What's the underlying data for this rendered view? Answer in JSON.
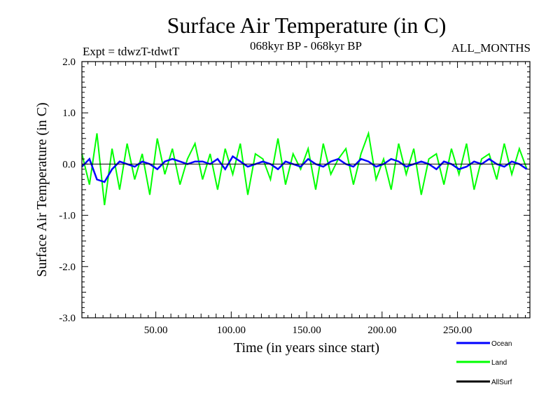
{
  "chart_data": {
    "type": "line",
    "title": "Surface Air Temperature (in C)",
    "subtitle_left": "Expt = tdwzT-tdwtT",
    "subtitle_center": "068kyr BP - 068kyr BP",
    "subtitle_right": "ALL_MONTHS",
    "xlabel": "Time (in years since start)",
    "ylabel": "Surface Air Temperature (in C)",
    "xlim": [
      1,
      298
    ],
    "ylim": [
      -3.0,
      2.0
    ],
    "x_ticks": [
      50,
      100,
      150,
      200,
      250
    ],
    "x_tick_labels": [
      "50.00",
      "100.00",
      "150.00",
      "200.00",
      "250.00"
    ],
    "y_ticks": [
      2.0,
      1.0,
      0.0,
      -1.0,
      -2.0,
      -3.0
    ],
    "y_tick_labels": [
      "2.0",
      "1.0",
      "0.0",
      "-1.0",
      "-2.0",
      "-3.0"
    ],
    "zero_line": 0.0,
    "grid": false,
    "legend_position": "bottom-right",
    "series": [
      {
        "name": "Ocean",
        "color": "#0000ff",
        "x": [
          1,
          6,
          11,
          16,
          21,
          26,
          31,
          36,
          41,
          46,
          51,
          56,
          61,
          66,
          71,
          76,
          81,
          86,
          91,
          96,
          101,
          106,
          111,
          116,
          121,
          126,
          131,
          136,
          141,
          146,
          151,
          156,
          161,
          166,
          171,
          176,
          181,
          186,
          191,
          196,
          201,
          206,
          211,
          216,
          221,
          226,
          231,
          236,
          241,
          246,
          251,
          256,
          261,
          266,
          271,
          276,
          281,
          286,
          291,
          296
        ],
        "values": [
          -0.05,
          0.1,
          -0.3,
          -0.35,
          -0.1,
          0.05,
          0.0,
          -0.05,
          0.05,
          0.0,
          -0.1,
          0.05,
          0.1,
          0.05,
          0.0,
          0.05,
          0.05,
          0.0,
          0.1,
          -0.1,
          0.15,
          0.05,
          -0.05,
          0.0,
          0.05,
          0.0,
          -0.1,
          0.05,
          0.0,
          -0.05,
          0.1,
          0.0,
          -0.05,
          0.05,
          0.1,
          0.0,
          -0.05,
          0.1,
          0.05,
          -0.05,
          0.0,
          0.1,
          0.05,
          -0.05,
          0.0,
          0.05,
          0.0,
          -0.1,
          0.05,
          0.0,
          -0.1,
          -0.05,
          0.05,
          0.0,
          0.1,
          0.0,
          -0.05,
          0.05,
          0.0,
          -0.1
        ]
      },
      {
        "name": "Land",
        "color": "#00ff00",
        "x": [
          1,
          6,
          11,
          16,
          21,
          26,
          31,
          36,
          41,
          46,
          51,
          56,
          61,
          66,
          71,
          76,
          81,
          86,
          91,
          96,
          101,
          106,
          111,
          116,
          121,
          126,
          131,
          136,
          141,
          146,
          151,
          156,
          161,
          166,
          171,
          176,
          181,
          186,
          191,
          196,
          201,
          206,
          211,
          216,
          221,
          226,
          231,
          236,
          241,
          246,
          251,
          256,
          261,
          266,
          271,
          276,
          281,
          286,
          291,
          296
        ],
        "values": [
          0.2,
          -0.4,
          0.6,
          -0.8,
          0.3,
          -0.5,
          0.4,
          -0.3,
          0.2,
          -0.6,
          0.5,
          -0.2,
          0.3,
          -0.4,
          0.1,
          0.4,
          -0.3,
          0.2,
          -0.5,
          0.3,
          -0.2,
          0.4,
          -0.6,
          0.2,
          0.1,
          -0.3,
          0.5,
          -0.4,
          0.2,
          -0.1,
          0.3,
          -0.5,
          0.4,
          -0.2,
          0.1,
          0.3,
          -0.4,
          0.2,
          0.6,
          -0.3,
          0.1,
          -0.5,
          0.4,
          -0.2,
          0.3,
          -0.6,
          0.1,
          0.2,
          -0.4,
          0.3,
          -0.2,
          0.4,
          -0.5,
          0.1,
          0.2,
          -0.3,
          0.4,
          -0.2,
          0.3,
          -0.1
        ]
      },
      {
        "name": "AllSurf",
        "color": "#000000",
        "x": [],
        "values": []
      }
    ]
  }
}
